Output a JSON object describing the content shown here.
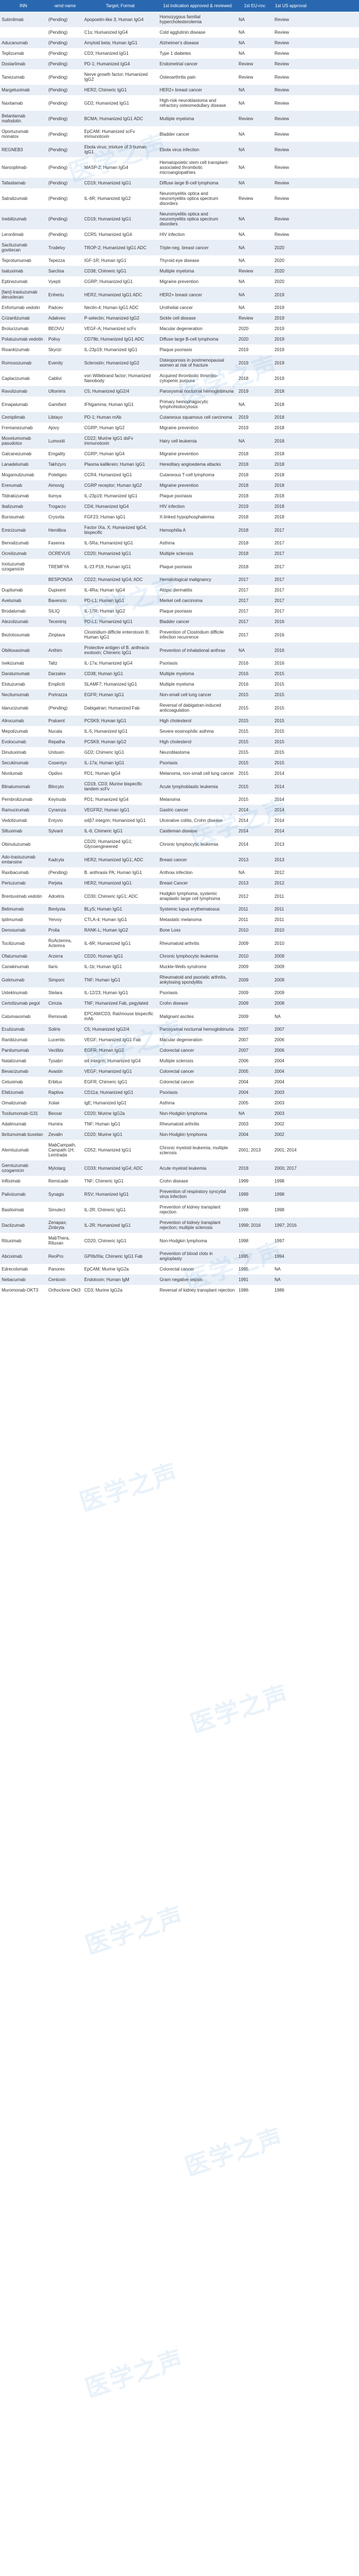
{
  "headers": [
    "INN",
    "-amd name",
    "Target; Format",
    "1st indication approved & reviewed",
    "1st EU-rov.",
    "1st US approval",
    ""
  ],
  "rows": [
    [
      "Sutimlimab",
      "(Pending)",
      "Apopoetin-like 3; Human IgG4",
      "Homozygous familial hypercholesterolemia",
      "NA",
      "Review",
      ""
    ],
    [
      "",
      "(Pending)",
      "C1s; Humanized IgG4",
      "Cold agglutinin disease",
      "NA",
      "Review",
      ""
    ],
    [
      "Aducanumab",
      "(Pending)",
      "Amyloid beta; Human IgG1",
      "Alzheimer's disease",
      "NA",
      "Review",
      ""
    ],
    [
      "Teplizumab",
      "(Pending)",
      "CD3; Humanized IgG1",
      "Type 1 diabetes",
      "NA",
      "Review",
      ""
    ],
    [
      "Dostarlimab",
      "(Pending)",
      "PD-1; Humanized IgG4",
      "Endometrial cancer",
      "Review",
      "Review",
      ""
    ],
    [
      "Tanezumab",
      "(Pending)",
      "Nerve growth factor; Humanized IgG2",
      "Osteoarthritis pain",
      "Review",
      "Review",
      ""
    ],
    [
      "Margetuximab",
      "(Pending)",
      "HER2; Chimeric IgG1",
      "HER2+ breast cancer",
      "NA",
      "Review",
      ""
    ],
    [
      "Naxitamab",
      "(Pending)",
      "GD2; Humanized IgG1",
      "High-risk neuroblastoma and refractory osteomedullary disease",
      "NA",
      "Review",
      ""
    ],
    [
      "Belantamab mafodotin",
      "(Pending)",
      "BCMA; Humanized IgG1 ADC",
      "Multiple myeloma",
      "Review",
      "Review",
      ""
    ],
    [
      "Oportuzumab monatox",
      "(Pending)",
      "EpCAM; Humanized scFv immunotoxin",
      "Bladder cancer",
      "NA",
      "Review",
      ""
    ],
    [
      "REGNEB3",
      "(Pending)",
      "Ebola virus; mixture of 3 human IgG1",
      "Ebola virus infection",
      "NA",
      "Review",
      ""
    ],
    [
      "Narsoplimab",
      "(Pending)",
      "MASP-2; Human IgG4",
      "Hematopoietic stem cell transplant- associated thrombotic microangiopathies",
      "NA",
      "Review",
      ""
    ],
    [
      "Tafasitamab",
      "(Pending)",
      "CD19; Humanized IgG1",
      "Diffuse large B-cell lymphoma",
      "NA",
      "Review",
      ""
    ],
    [
      "Satralizumab",
      "(Pending)",
      "IL-6R; Humanized IgG2",
      "Neuromyelitis optica and neuromyelitis optica spectrum disorders",
      "Review",
      "Review",
      ""
    ],
    [
      "Inebilizumab",
      "(Pending)",
      "CD19; Humanized IgG1",
      "Neuromyelitis optica and neuromyelitis optica spectrum disorders",
      "NA",
      "Review",
      ""
    ],
    [
      "Leronlimab",
      "(Pending)",
      "CCR5; Humanized IgG4",
      "HIV infection",
      "NA",
      "Review",
      ""
    ],
    [
      "Sacituzumab govitecan",
      "Trodelvy",
      "TROP-2; Humanized IgG1 ADC",
      "Triple-neg. breast cancer",
      "NA",
      "2020",
      ""
    ],
    [
      "Teprotumumab",
      "Tepezza",
      "IGF-1R; Human IgG1",
      "Thyroid eye disease",
      "NA",
      "2020",
      ""
    ],
    [
      "Isatuximab",
      "Sarclisa",
      "CD38; Chimeric IgG1",
      "Multiple myeloma",
      "Review",
      "2020",
      ""
    ],
    [
      "Eptinezumab",
      "Vyepti",
      "CGRP; Humanized IgG1",
      "Migraine prevention",
      "NA",
      "2020",
      ""
    ],
    [
      "[fam]-trastuzumab deruxtecan",
      "Enhertu",
      "HER2; Humanized IgG1 ADC",
      "HER2+ breast cancer",
      "NA",
      "2019",
      ""
    ],
    [
      "Enfortumab vedotin",
      "Padcev",
      "Nectin-4; Human IgG1 ADC",
      "Urothelial cancer",
      "NA",
      "2019",
      ""
    ],
    [
      "Crizanlizumab",
      "Adakveo",
      "P-selectin; Humanized IgG2",
      "Sickle cell disease",
      "Review",
      "2019",
      ""
    ],
    [
      "Brolucizumab",
      "BEOVU",
      "VEGF-A; Humanized scFv",
      "Macular degeneration",
      "2020",
      "2019",
      ""
    ],
    [
      "Polatuzumab vedotin",
      "Polivy",
      "CD79b; Humanized IgG1 ADC",
      "Diffuse large B-cell lymphoma",
      "2020",
      "2019",
      ""
    ],
    [
      "Risankizumab",
      "Skyrizi",
      "IL-23p19; Humanized IgG1",
      "Plaque psoriasis",
      "2019",
      "2019",
      ""
    ],
    [
      "Romosozumab",
      "Evenity",
      "Sclerostin; Humanized IgG2",
      "Osteoporosis in postmenopausal women at risk of fracture",
      "2019",
      "2019",
      ""
    ],
    [
      "Caplacizumab",
      "Cablivi",
      "von Willebrand factor; Humanized Nanobody",
      "Acquired thrombotic thrombo- cytopenic purpura",
      "2018",
      "2019",
      ""
    ],
    [
      "Ravulizumab",
      "Ultomiris",
      "C5; Humanized IgG2/4",
      "Paroxysmal nocturnal hemoglobinuria",
      "2019",
      "2018",
      ""
    ],
    [
      "Emapalumab",
      "Gamifant",
      "IFNgamma; Human IgG1",
      "Primary hemophagocytic lymphohistiocytosis",
      "NA",
      "2018",
      ""
    ],
    [
      "Cemiplimab",
      "Libtayo",
      "PD-1; Human mAb",
      "Cutaneous squamous cell carcinoma",
      "2019",
      "2018",
      ""
    ],
    [
      "Fremanezumab",
      "Ajovy",
      "CGRP; Human IgG2",
      "Migraine prevention",
      "2019",
      "2018",
      ""
    ],
    [
      "Moxetumomab pasudotox",
      "Lumoxiti",
      "CD22; Murine IgG1 dsFv immunotoxin",
      "Hairy cell leukemia",
      "NA",
      "2018",
      ""
    ],
    [
      "Galcanezumab",
      "Emgality",
      "CGRP; Human IgG4",
      "Migraine prevention",
      "2018",
      "2018",
      ""
    ],
    [
      "Lanadelumab",
      "Takhzyro",
      "Plasma kallikrein; Human IgG1",
      "Hereditary angioedema attacks",
      "2018",
      "2018",
      ""
    ],
    [
      "Mogamulizumab",
      "Poteligeo",
      "CCR4; Humanized IgG1",
      "Cutaneous T-cell lymphoma",
      "2018",
      "2018",
      ""
    ],
    [
      "Erenumab",
      "Aimovig",
      "CGRP receptor; Human IgG2",
      "Migraine prevention",
      "2018",
      "2018",
      ""
    ],
    [
      "Tildrakizumab",
      "Ilumya",
      "IL-23p19; Humanized IgG1",
      "Plaque psoriasis",
      "2018",
      "2018",
      ""
    ],
    [
      "Ibalizumab",
      "Trogarzo",
      "CD4; Humanized IgG4",
      "HIV infection",
      "2019",
      "2018",
      ""
    ],
    [
      "Burosumab",
      "Crysvita",
      "FGF23; Human IgG1",
      "X-linked hypophosphatemia",
      "2018",
      "2018",
      ""
    ],
    [
      "Emicizumab",
      "Hemlibra",
      "Factor IXa, X; Humanized IgG4, bispecific",
      "Hemophilia A",
      "2018",
      "2017",
      ""
    ],
    [
      "Benralizumab",
      "Fasenra",
      "IL-5Ra; Humanized IgG1",
      "Asthma",
      "2018",
      "2017",
      ""
    ],
    [
      "Ocrelizumab",
      "OCREVUS",
      "CD20; Humanized IgG1",
      "Multiple sclerosis",
      "2018",
      "2017",
      ""
    ],
    [
      "Inotuzumab ozogamicin",
      "TREMFYA",
      "IL-23 P19; Human IgG1",
      "Plaque psoriasis",
      "2018",
      "2017",
      ""
    ],
    [
      "",
      "BESPONSA",
      "CD22; Humanized IgG4; ADC",
      "Hematological malignancy",
      "2017",
      "2017",
      ""
    ],
    [
      "Dupilumab",
      "Dupixent",
      "IL-4Ra; Human IgG4",
      "Atopic dermatitis",
      "2017",
      "2017",
      ""
    ],
    [
      "Avelumab",
      "Bavencio",
      "PD-L1; Human IgG1",
      "Merkel cell carcinoma",
      "2017",
      "2017",
      ""
    ],
    [
      "Brodalumab",
      "SILIQ",
      "IL-17R; Human IgG2",
      "Plaque psoriasis",
      "2017",
      "2017",
      ""
    ],
    [
      "Atezolizumab",
      "Tecentriq",
      "PD-L1; Humanized IgG1",
      "Bladder cancer",
      "2017",
      "2016",
      ""
    ],
    [
      "Bezlotoxumab",
      "Zinplava",
      "Clostridium difficile enterotoxin B; Human IgG1",
      "Prevention of Clostridium difficile infection recurrence",
      "2017",
      "2016",
      ""
    ],
    [
      "Obiltoxaximab",
      "Anthim",
      "Protective antigen of B. anthracis exotoxin; Chimeric IgG1",
      "Prevention of inhalational anthrax",
      "NA",
      "2016",
      ""
    ],
    [
      "Ixekizumab",
      "Taltz",
      "IL-17a; Humanized IgG4",
      "Psoriasis",
      "2016",
      "2016",
      ""
    ],
    [
      "Daratumumab",
      "Darzalex",
      "CD38; Human IgG1",
      "Multiple myeloma",
      "2016",
      "2015",
      ""
    ],
    [
      "Elotuzumab",
      "Empliciti",
      "SLAMF7; Humanized IgG1",
      "Multiple myeloma",
      "2016",
      "2015",
      ""
    ],
    [
      "Necitumumab",
      "Portrazza",
      "EGFR; Human IgG1",
      "Non-small cell lung cancer",
      "2015",
      "2015",
      ""
    ],
    [
      "Idarucizumab",
      "(Pending)",
      "Dabigatran; Humanized Fab",
      "Reversal of dabigatran-induced anticoagulation",
      "2015",
      "2015",
      ""
    ],
    [
      "Alirocumab",
      "Praluent",
      "PCSK9; Human IgG1",
      "High cholesterol",
      "2015",
      "2015",
      ""
    ],
    [
      "Mepolizumab",
      "Nucala",
      "IL-5; Humanized IgG1",
      "Severe eosinophilic asthma",
      "2015",
      "2015",
      ""
    ],
    [
      "Evolocumab",
      "Repatha",
      "PCSK9; Human IgG2",
      "High cholesterol",
      "2015",
      "2015",
      ""
    ],
    [
      "Dinutuximab",
      "Unituxin",
      "GD2; Chimeric IgG1",
      "Neuroblastoma",
      "2015",
      "2015",
      ""
    ],
    [
      "Secukinumab",
      "Cosentyx",
      "IL-17a; Human IgG1",
      "Psoriasis",
      "2015",
      "2015",
      ""
    ],
    [
      "Nivolumab",
      "Opdivo",
      "PD1; Human IgG4",
      "Melanoma, non-small cell lung cancer",
      "2015",
      "2014",
      ""
    ],
    [
      "Blinatumomab",
      "Blincyto",
      "CD19, CD3; Murine bispecific tandem scFv",
      "Acute lymphoblastic leukemia",
      "2015",
      "2014",
      ""
    ],
    [
      "Pembrolizumab",
      "Keytruda",
      "PD1; Humanized IgG4",
      "Melanoma",
      "2015",
      "2014",
      ""
    ],
    [
      "Ramucirumab",
      "Cyramza",
      "VEGFR2; Human IgG1",
      "Gastric cancer",
      "2014",
      "2014",
      ""
    ],
    [
      "Vedolizumab",
      "Entyvio",
      "α4β7 integrin; Humanized IgG1",
      "Ulcerative colitis, Crohn disease",
      "2014",
      "2014",
      ""
    ],
    [
      "Siltuximab",
      "Sylvant",
      "IL-6; Chimeric IgG1",
      "Castleman disease",
      "2014",
      "2014",
      ""
    ],
    [
      "Obinutuzumab",
      "",
      "CD20; Humanized IgG1; Glycoengineered",
      "Chronic lymphocytic leukemia",
      "2014",
      "2013",
      ""
    ],
    [
      "Ado-trastuzumab emtansine",
      "Kadcyla",
      "HER2; Humanized IgG1; ADC",
      "Breast cancer",
      "2013",
      "2013",
      ""
    ],
    [
      "Raxibacumab",
      "(Pending)",
      "B. anthrasis PA; Human IgG1",
      "Anthrax infection",
      "NA",
      "2012",
      ""
    ],
    [
      "Pertuzumab",
      "Perjeta",
      "HER2; Humanized IgG1",
      "Breast Cancer",
      "2013",
      "2012",
      ""
    ],
    [
      "Brentuximab vedotin",
      "Adcetris",
      "CD30; Chimeric IgG1; ADC",
      "Hodgkin lymphoma, systemic anaplastic large cell lymphoma",
      "2012",
      "2011",
      ""
    ],
    [
      "Belimumab",
      "Benlysta",
      "BLyS; Human IgG1",
      "Systemic lupus erythematosus",
      "2011",
      "2011",
      ""
    ],
    [
      "Ipilimumab",
      "Yervoy",
      "CTLA-4; Human IgG1",
      "Metastatic melanoma",
      "2011",
      "2011",
      ""
    ],
    [
      "Denosumab",
      "Prolia",
      "RANK-L; Human IgG2",
      "Bone Loss",
      "2010",
      "2010",
      ""
    ],
    [
      "Tocilizumab",
      "RoActemra, Actemra",
      "IL-6R; Humanized IgG1",
      "Rheumatoid arthritis",
      "2009",
      "2010",
      ""
    ],
    [
      "Ofatumumab",
      "Arzerra",
      "CD20; Human IgG1",
      "Chronic lymphocytic leukemia",
      "2010",
      "2009",
      ""
    ],
    [
      "Canakinumab",
      "Ilaris",
      "IL-1b; Human IgG1",
      "Muckle-Wells syndrome",
      "2009",
      "2009",
      ""
    ],
    [
      "Golimumab",
      "Simponi",
      "TNF; Human IgG1",
      "Rheumatoid and psoriatic arthritis, ankylosing spondylitis",
      "2009",
      "2009",
      ""
    ],
    [
      "Ustekinumab",
      "Stelara",
      "IL-12/23; Human IgG1",
      "Psoriasis",
      "2009",
      "2009",
      ""
    ],
    [
      "Certolizumab pegol",
      "Cimzia",
      "TNF; Humanized Fab, pegylated",
      "Crohn disease",
      "2009",
      "2008",
      ""
    ],
    [
      "Catumaxomab",
      "Removab",
      "EPCAM/CD3; Rat/mouse bispecific mAb",
      "Malignant ascites",
      "2009",
      "NA",
      ""
    ],
    [
      "Eculizumab",
      "Soliris",
      "C5; Humanized IgG2/4",
      "Paroxysmal nocturnal hemoglobinuria",
      "2007",
      "2007",
      ""
    ],
    [
      "Ranibizumab",
      "Lucentis",
      "VEGF; Humanized IgG1 Fab",
      "Macular degeneration",
      "2007",
      "2006",
      ""
    ],
    [
      "Panitumumab",
      "Vectibix",
      "EGFR; Human IgG2",
      "Colorectal cancer",
      "2007",
      "2006",
      ""
    ],
    [
      "Natalizumab",
      "Tysabri",
      "α4 integrin; Humanized IgG4",
      "Multiple sclerosis",
      "2006",
      "2004",
      ""
    ],
    [
      "Bevacizumab",
      "Avastin",
      "VEGF; Humanized IgG1",
      "Colorectal cancer",
      "2005",
      "2004",
      ""
    ],
    [
      "Cetuximab",
      "Erbitux",
      "EGFR; Chimeric IgG1",
      "Colorectal cancer",
      "2004",
      "2004",
      ""
    ],
    [
      "Efalizumab",
      "Raptiva",
      "CD11a; Humanized IgG1",
      "Psoriasis",
      "2004",
      "2003",
      ""
    ],
    [
      "Omalizumab",
      "Xolair",
      "IgE; Humanized IgG1",
      "Asthma",
      "2005",
      "2003",
      ""
    ],
    [
      "Tositumomab-I131",
      "Bexxar",
      "CD20; Murine IgG2a",
      "Non-Hodgkin lymphoma",
      "NA",
      "2003",
      ""
    ],
    [
      "Adalimumab",
      "Humira",
      "TNF; Human IgG1",
      "Rheumatoid arthritis",
      "2003",
      "2002",
      ""
    ],
    [
      "Ibritumomab tiuxetan",
      "Zevalin",
      "CD20; Murine IgG1",
      "Non-Hodgkin lymphoma",
      "2004",
      "2002",
      ""
    ],
    [
      "Alemtuzumab",
      "MabCampath, Campath-1H; Lemtrada",
      "CD52; Humanized IgG1",
      "Chronic myeloid leukemia; multiple sclerosis",
      "2001; 2013",
      "2001; 2014",
      ""
    ],
    [
      "Gemtuzumab ozogamicin",
      "Mylotarg",
      "CD33; Humanized IgG4; ADC",
      "Acute myeloid leukemia",
      "2018",
      "2000; 2017",
      ""
    ],
    [
      "Infliximab",
      "Remicade",
      "TNF; Chimeric IgG1",
      "Crohn disease",
      "1999",
      "1998",
      ""
    ],
    [
      "Palivizumab",
      "Synagis",
      "RSV; Humanized IgG1",
      "Prevention of respiratory syncytial virus infection",
      "1999",
      "1998",
      ""
    ],
    [
      "Basiliximab",
      "Simulect",
      "IL-2R; Chimeric IgG1",
      "Prevention of kidney transplant rejection",
      "1998",
      "1998",
      ""
    ],
    [
      "Daclizumab",
      "Zenapax; Zinbryta",
      "IL-2R; Humanized IgG1",
      "Prevention of kidney transplant rejection; multiple sclerosis",
      "1999; 2016",
      "1997; 2016",
      ""
    ],
    [
      "Rituximab",
      "MabThera, Rituxan",
      "CD20; Chimeric IgG1",
      "Non-Hodgkin lymphoma",
      "1998",
      "1997",
      ""
    ],
    [
      "Abciximab",
      "ReoPro",
      "GPIIb/IIIa; Chimeric IgG1 Fab",
      "Prevention of blood clots in angioplasty",
      "1995",
      "1994",
      ""
    ],
    [
      "Edrecolomab",
      "Panorex",
      "EpCAM; Murine IgG2a",
      "Colorectal cancer",
      "1995",
      "NA",
      ""
    ],
    [
      "Nebacumab",
      "Centoxin",
      "Endotoxin; Human IgM",
      "Gram negative sepsis",
      "1991",
      "NA",
      ""
    ],
    [
      "Muromonab-OKT3",
      "Orthoclone Okt3",
      "CD3; Murine IgG2a",
      "Reversal of kidney transplant rejection",
      "1986",
      "1986",
      ""
    ]
  ],
  "watermark_text": "医学之声"
}
